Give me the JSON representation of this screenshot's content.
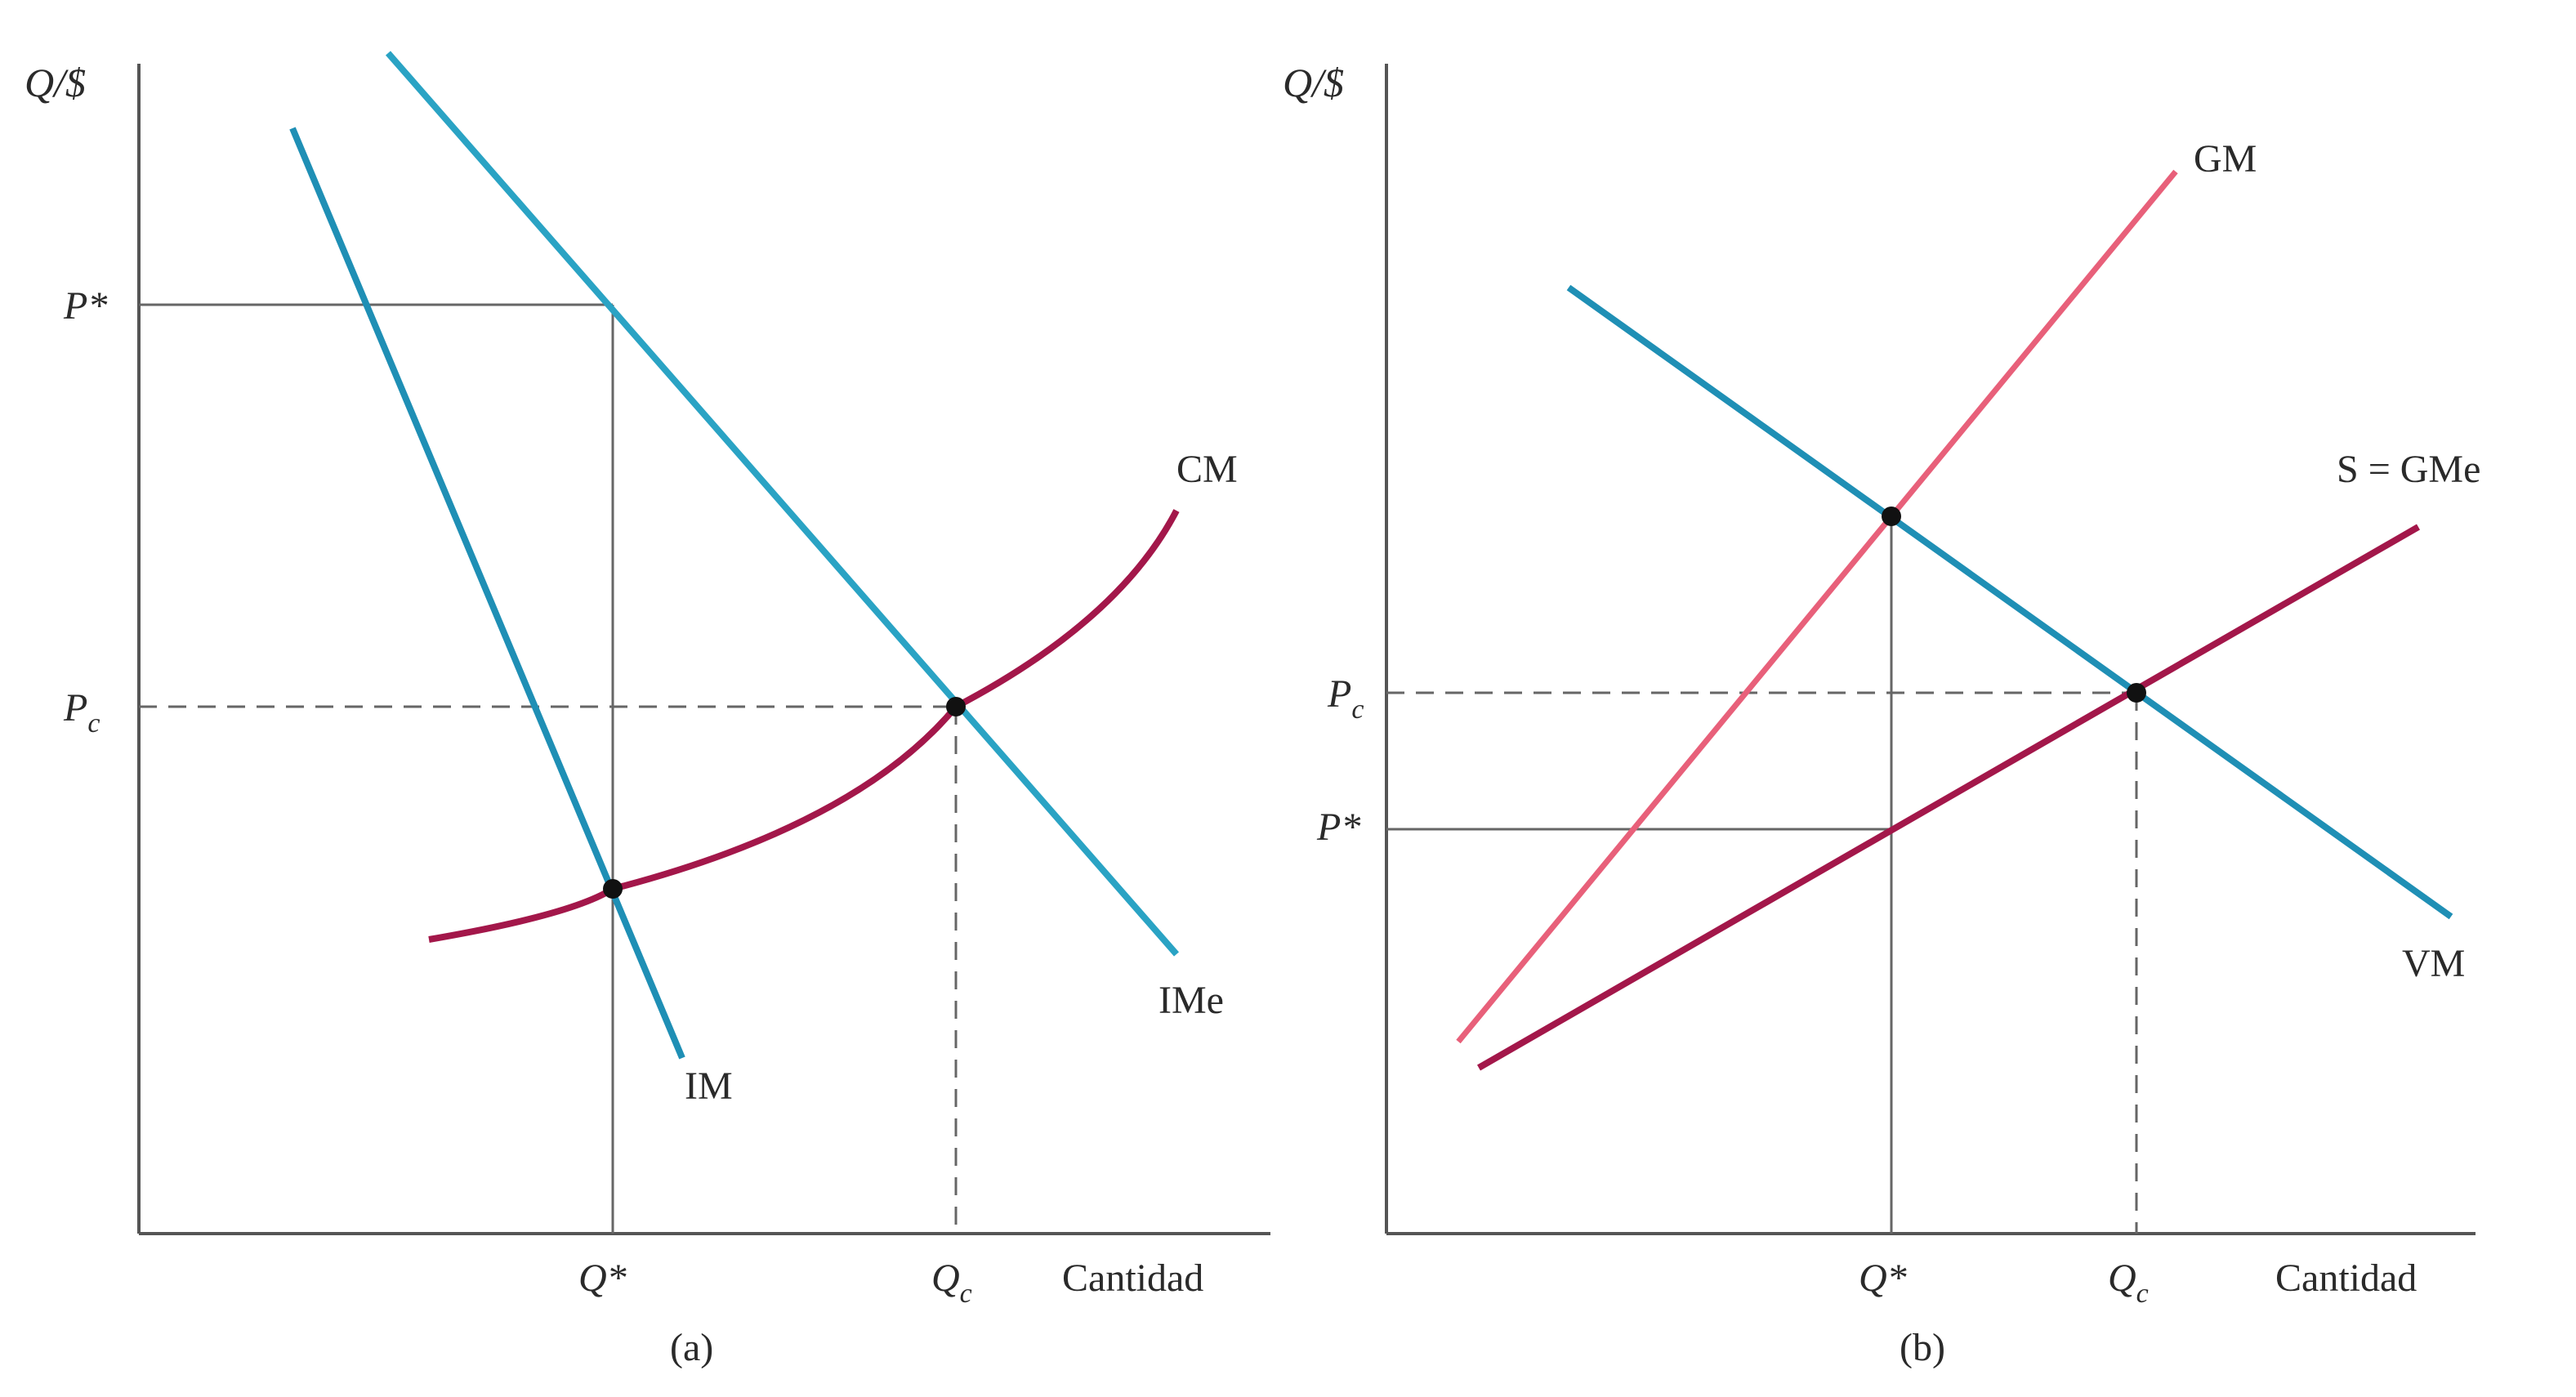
{
  "panels": {
    "a": {
      "caption": "(a)",
      "y_axis_label": "Q/$",
      "x_axis_label": "Cantidad",
      "ticks": {
        "p_star": "P*",
        "p_c": "P",
        "q_star": "Q*",
        "q_c": "Q"
      },
      "tick_subscripts": {
        "p_c": "c",
        "q_c": "c"
      },
      "curves": {
        "cm": "CM",
        "ime": "IMe",
        "im": "IM"
      },
      "colors": {
        "cm": "#a3174a",
        "ime": "#2aa3c4",
        "im": "#1f8fb5"
      }
    },
    "b": {
      "caption": "(b)",
      "y_axis_label": "Q/$",
      "x_axis_label": "Cantidad",
      "ticks": {
        "p_c": "P",
        "p_star": "P*",
        "q_star": "Q*",
        "q_c": "Q"
      },
      "tick_subscripts": {
        "p_c": "c",
        "q_c": "c"
      },
      "curves": {
        "gm": "GM",
        "gme": "S = GMe",
        "vm": "VM"
      },
      "colors": {
        "gm": "#e8607a",
        "gme": "#a3174a",
        "vm": "#1f8fb5"
      }
    }
  }
}
